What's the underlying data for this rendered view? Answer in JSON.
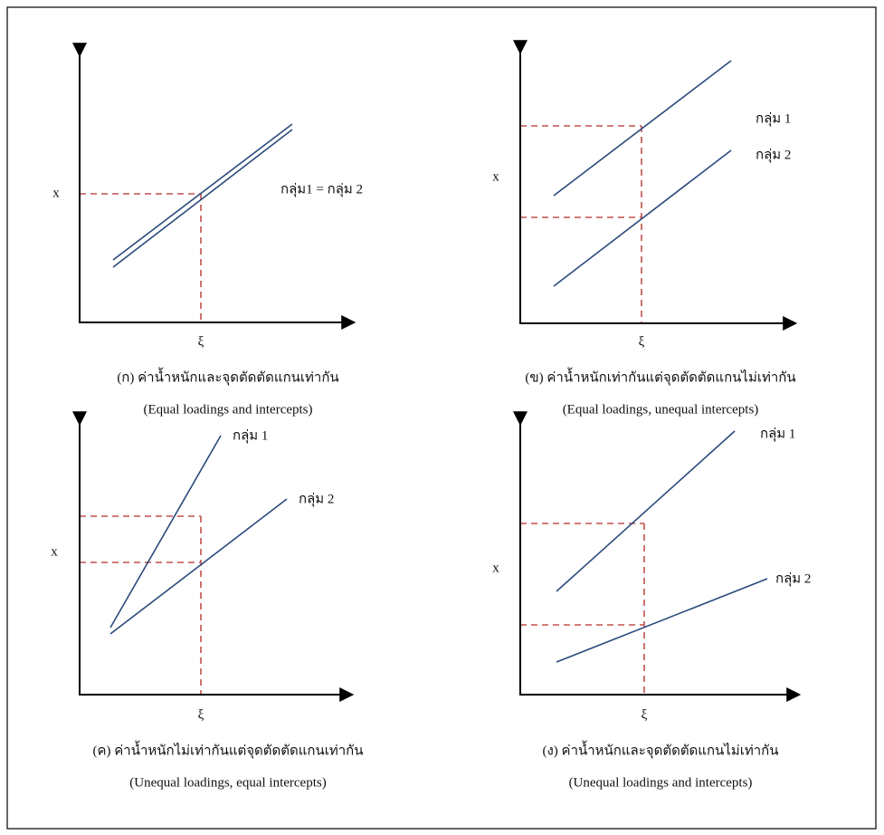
{
  "panels": [
    {
      "axis_label": "x",
      "xi_label": "ξ",
      "groups": [
        "กลุ่ม1 = กลุ่ม 2"
      ],
      "caption_th": "(ก) ค่าน้ำหนักและจุดตัดตัดแกนเท่ากัน",
      "caption_en": "(Equal loadings and intercepts)"
    },
    {
      "axis_label": "x",
      "xi_label": "ξ",
      "groups": [
        "กลุ่ม 1",
        "กลุ่ม 2"
      ],
      "caption_th": "(ข) ค่าน้ำหนักเท่ากันแต่จุดตัดตัดแกนไม่เท่ากัน",
      "caption_en": "(Equal loadings, unequal intercepts)"
    },
    {
      "axis_label": "x",
      "xi_label": "ξ",
      "groups": [
        "กลุ่ม 1",
        "กลุ่ม 2"
      ],
      "caption_th": "(ค) ค่าน้ำหนักไม่เท่ากันแต่จุดตัดตัดแกนเท่ากัน",
      "caption_en": "(Unequal loadings, equal intercepts)"
    },
    {
      "axis_label": "x",
      "xi_label": "ξ",
      "groups": [
        "กลุ่ม 1",
        "กลุ่ม 2"
      ],
      "caption_th": "(ง) ค่าน้ำหนักและจุดตัดตัดแกนไม่เท่ากัน",
      "caption_en": "(Unequal loadings and intercepts)"
    }
  ]
}
